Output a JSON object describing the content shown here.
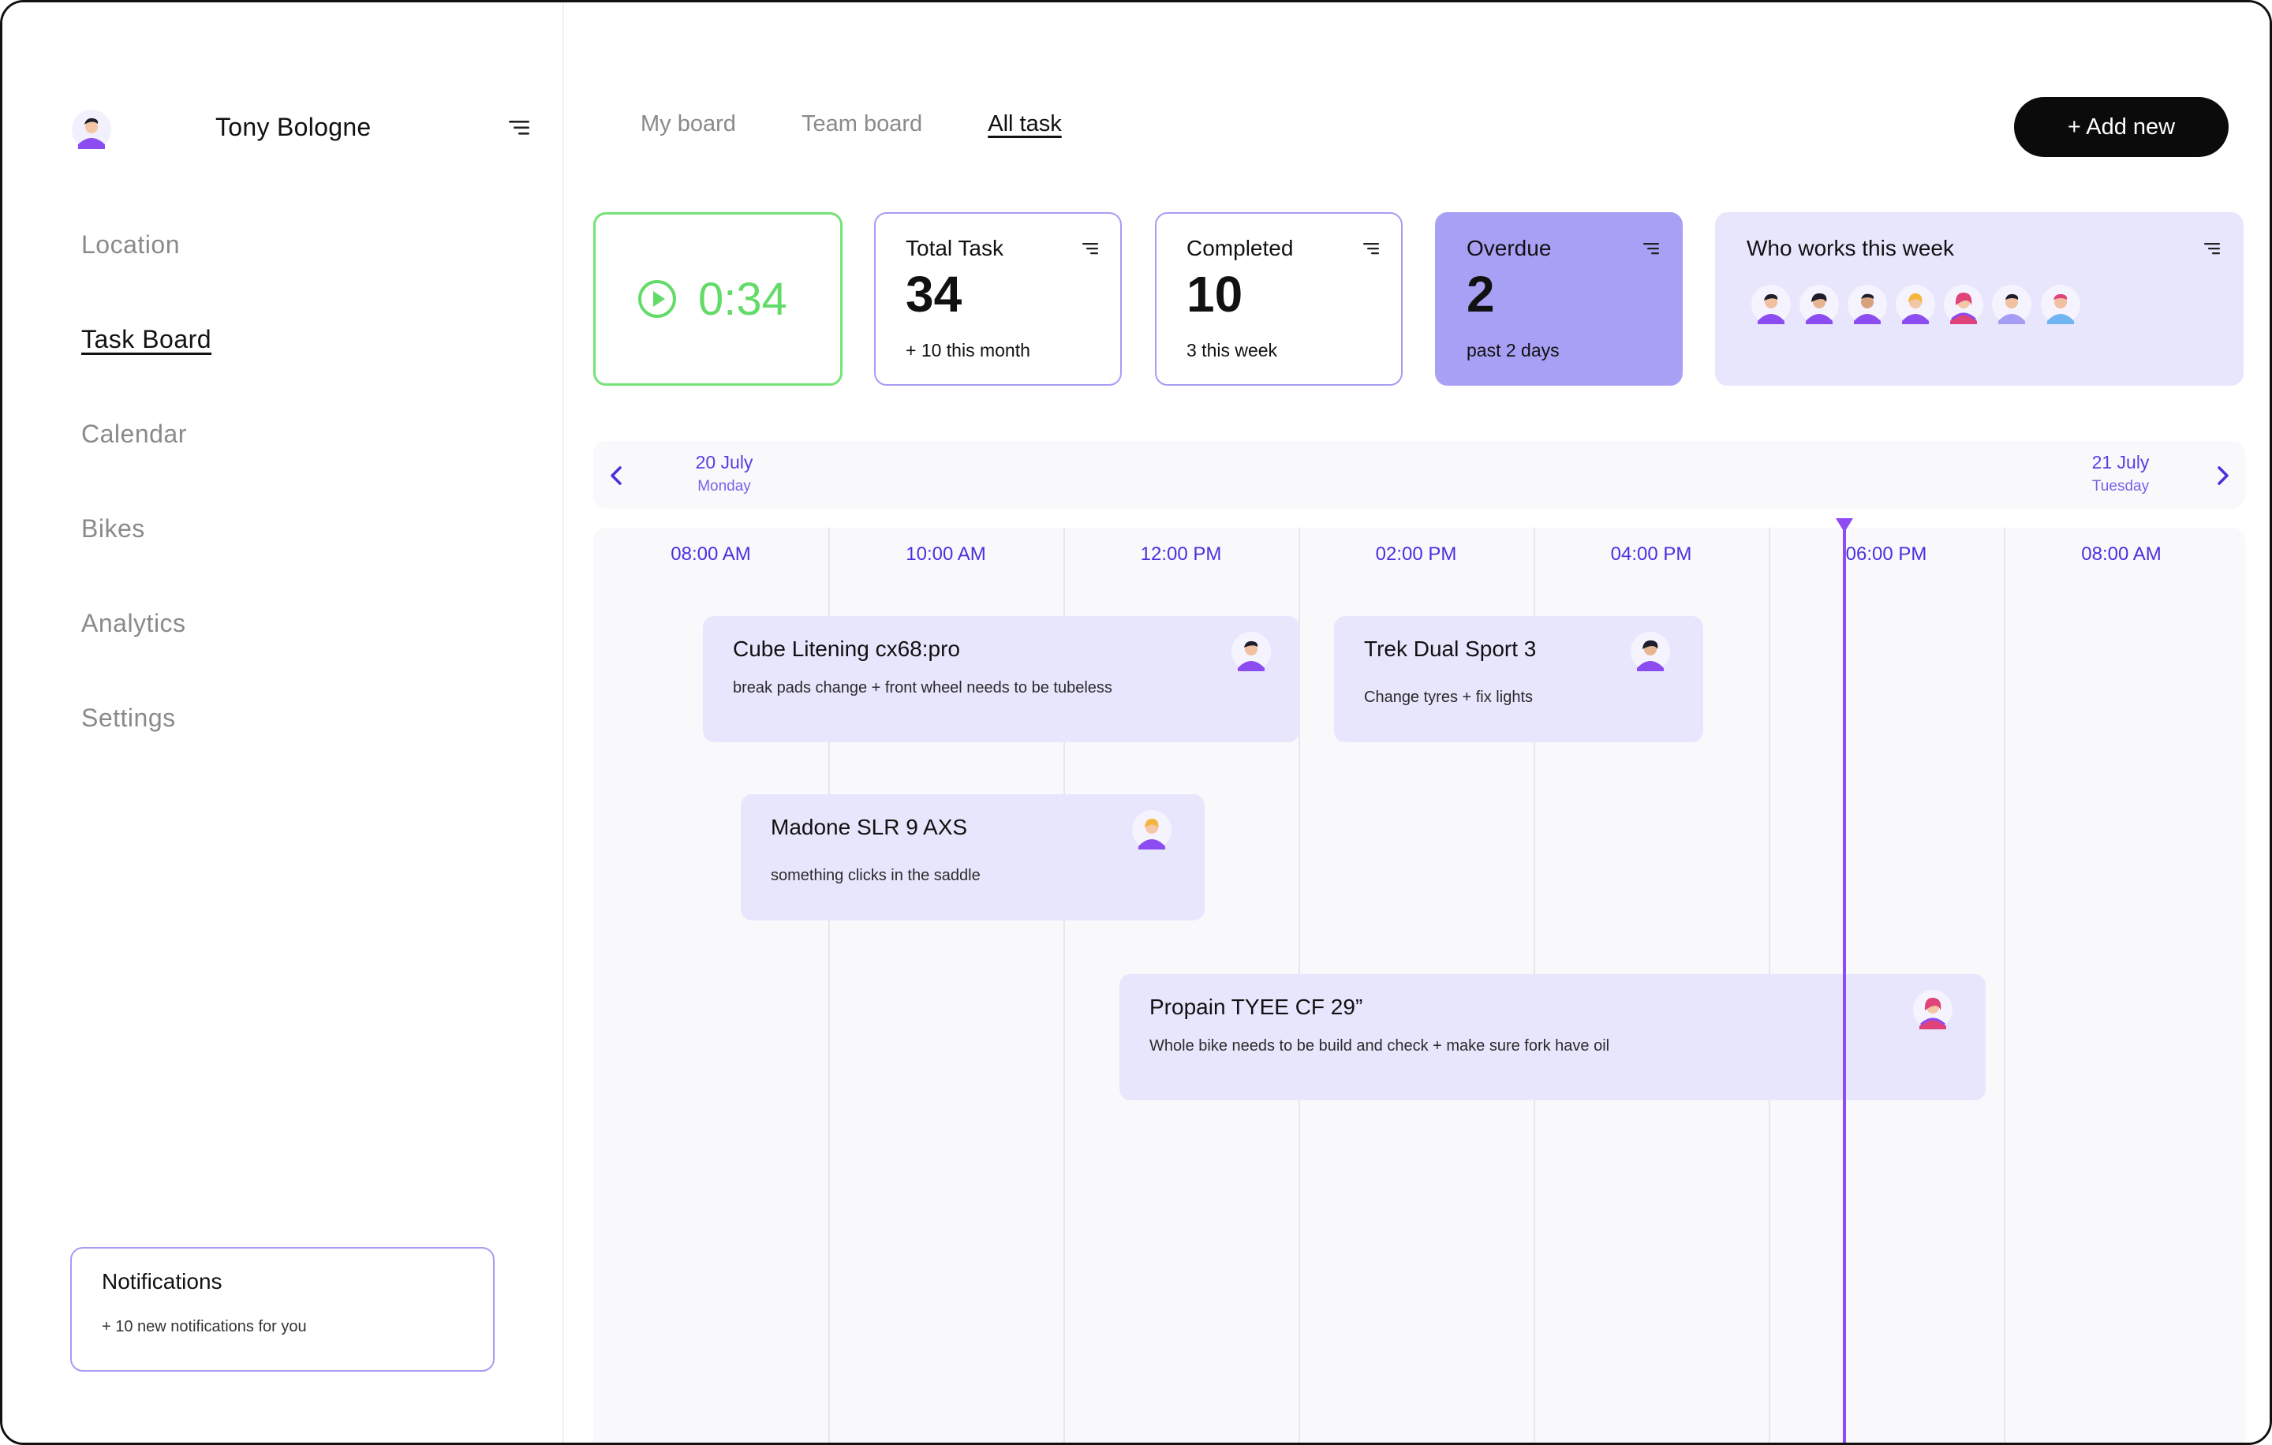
{
  "user": {
    "name": "Tony Bologne"
  },
  "nav": {
    "items": [
      {
        "label": "Location",
        "active": false
      },
      {
        "label": "Task Board",
        "active": true
      },
      {
        "label": "Calendar",
        "active": false
      },
      {
        "label": "Bikes",
        "active": false
      },
      {
        "label": "Analytics",
        "active": false
      },
      {
        "label": "Settings",
        "active": false
      }
    ]
  },
  "notifications": {
    "title": "Notifications",
    "sub": "+ 10 new notifications for you"
  },
  "tabs": [
    {
      "label": "My board",
      "active": false
    },
    {
      "label": "Team board",
      "active": false
    },
    {
      "label": "All task",
      "active": true
    }
  ],
  "add_button": "+ Add new",
  "timer": {
    "value": "0:34"
  },
  "stats": {
    "total": {
      "title": "Total Task",
      "value": "34",
      "sub": "+ 10 this month"
    },
    "completed": {
      "title": "Completed",
      "value": "10",
      "sub": "3 this week"
    },
    "overdue": {
      "title": "Overdue",
      "value": "2",
      "sub": "past 2 days"
    }
  },
  "who": {
    "title": "Who works this week"
  },
  "dates": {
    "left": {
      "date": "20 July",
      "day": "Monday"
    },
    "right": {
      "date": "21 July",
      "day": "Tuesday"
    }
  },
  "hours": [
    "08:00 AM",
    "10:00 AM",
    "12:00 PM",
    "02:00 PM",
    "04:00 PM",
    "06:00 PM",
    "08:00 AM"
  ],
  "tasks": [
    {
      "title": "Cube Litening cx68:pro",
      "desc": "break pads change + front wheel needs to be tubeless"
    },
    {
      "title": "Trek Dual Sport 3",
      "desc": "Change tyres + fix lights"
    },
    {
      "title": "Madone SLR 9 AXS",
      "desc": "something clicks in the saddle"
    },
    {
      "title": "Propain TYEE CF 29”",
      "desc": "Whole bike needs to be build and check + make sure fork have oil"
    }
  ],
  "colors": {
    "accent": "#5b3de0",
    "lavender": "#e8e6fd",
    "overdue": "#a8a0f5",
    "timer_green": "#63db69",
    "now_line": "#8f4bf3"
  }
}
